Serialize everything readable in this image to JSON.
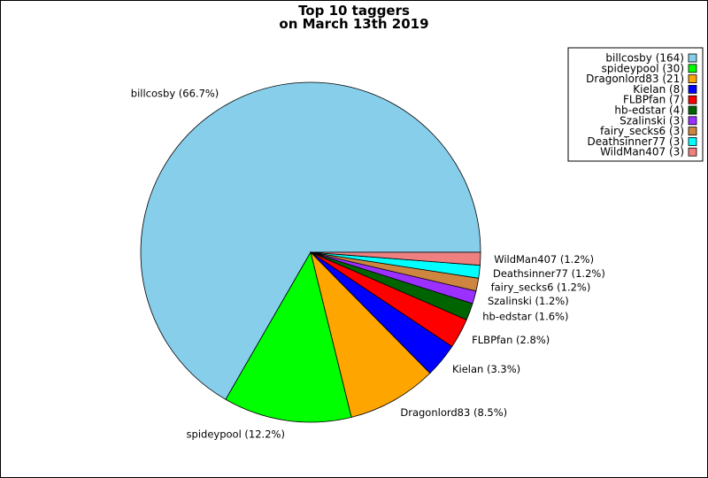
{
  "chart_data": {
    "type": "pie",
    "title": "Top 10 taggers",
    "subtitle": "on March 13th 2019",
    "slices": [
      {
        "name": "billcosby",
        "value": 164,
        "percent_label": "66.7%",
        "color": "#87ceeb"
      },
      {
        "name": "spideypool",
        "value": 30,
        "percent_label": "12.2%",
        "color": "#00ff00"
      },
      {
        "name": "Dragonlord83",
        "value": 21,
        "percent_label": "8.5%",
        "color": "#ffa500"
      },
      {
        "name": "Kielan",
        "value": 8,
        "percent_label": "3.3%",
        "color": "#0000ff"
      },
      {
        "name": "FLBPfan",
        "value": 7,
        "percent_label": "2.8%",
        "color": "#ff0000"
      },
      {
        "name": "hb-edstar",
        "value": 4,
        "percent_label": "1.6%",
        "color": "#006400"
      },
      {
        "name": "Szalinski",
        "value": 3,
        "percent_label": "1.2%",
        "color": "#9b30ff"
      },
      {
        "name": "fairy_secks6",
        "value": 3,
        "percent_label": "1.2%",
        "color": "#cd853f"
      },
      {
        "name": "Deathsinner77",
        "value": 3,
        "percent_label": "1.2%",
        "color": "#00ffff"
      },
      {
        "name": "WildMan407",
        "value": 3,
        "percent_label": "1.2%",
        "color": "#f08080"
      }
    ],
    "start_angle_deg": 0,
    "direction": "counterclockwise",
    "legend_position": "top-right"
  }
}
